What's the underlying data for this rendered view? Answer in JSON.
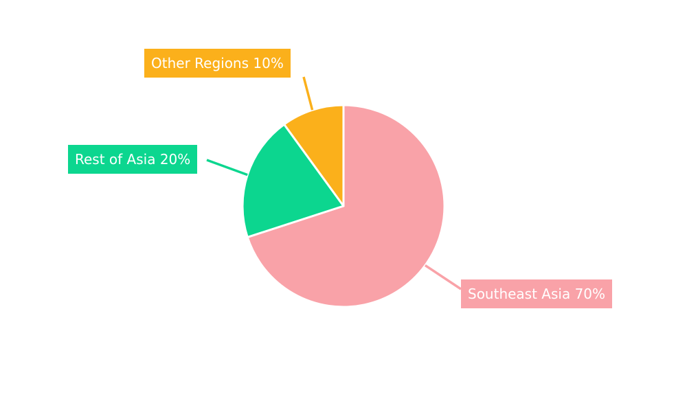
{
  "chart_data": {
    "type": "pie",
    "title": "",
    "categories": [
      "Southeast Asia",
      "Rest of Asia",
      "Other Regions"
    ],
    "values": [
      70,
      20,
      10
    ],
    "unit": "%",
    "start_angle_deg": -90,
    "direction": "clockwise",
    "slices": [
      {
        "label": "Southeast Asia",
        "value": 70,
        "display": "Southeast Asia 70%",
        "color": "#F9A2A8"
      },
      {
        "label": "Rest of Asia",
        "value": 20,
        "display": "Rest of Asia 20%",
        "color": "#0CD68F"
      },
      {
        "label": "Other Regions",
        "value": 10,
        "display": "Other Regions 10%",
        "color": "#FBB01B"
      }
    ],
    "separator_color": "#FFFFFF",
    "label_text_color": "#FFFFFF",
    "background": "#FFFFFF",
    "legend": "none",
    "grid": "off"
  }
}
